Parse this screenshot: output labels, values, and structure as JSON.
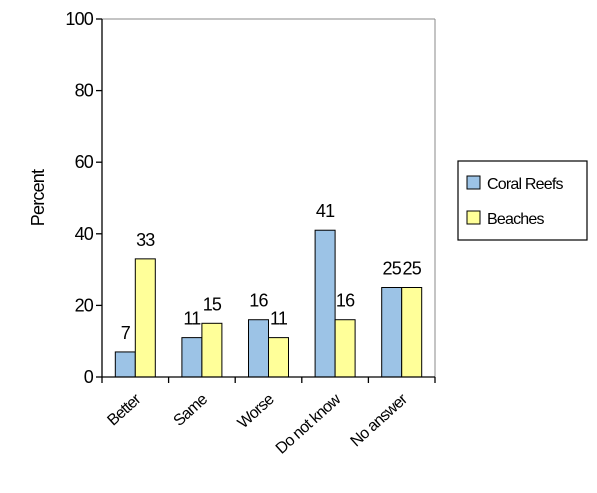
{
  "chart_data": {
    "type": "bar",
    "title": "",
    "xlabel": "",
    "ylabel": "Percent",
    "ylim": [
      0,
      100
    ],
    "yticks": [
      0,
      20,
      40,
      60,
      80,
      100
    ],
    "grid": false,
    "legend": "right",
    "categories": [
      "Better",
      "Same",
      "Worse",
      "Do not know",
      "No answer"
    ],
    "series": [
      {
        "name": "Coral Reefs",
        "color": "#9cc3e6",
        "values": [
          7,
          11,
          16,
          41,
          25
        ]
      },
      {
        "name": "Beaches",
        "color": "#ffff99",
        "values": [
          33,
          15,
          11,
          16,
          25
        ]
      }
    ]
  }
}
